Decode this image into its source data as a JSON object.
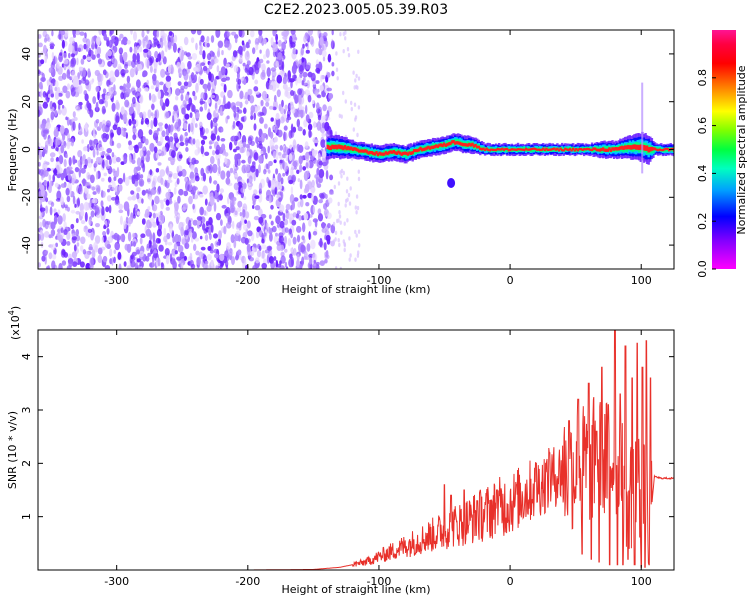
{
  "title": "C2E2.2023.005.05.39.R03",
  "chart_data": [
    {
      "type": "heatmap",
      "xlabel": "Height of straight line (km)",
      "ylabel": "Frequency (Hz)",
      "xlim": [
        -360,
        125
      ],
      "ylim": [
        -50,
        50
      ],
      "xticks": [
        -300,
        -200,
        -100,
        0,
        100
      ],
      "yticks": [
        -40,
        -20,
        0,
        20,
        40
      ],
      "colorbar": {
        "label": "Normalized spectral amplitude",
        "range": [
          0.0,
          1.0
        ],
        "ticks": [
          0.0,
          0.2,
          0.4,
          0.6,
          0.8
        ],
        "colors": [
          "#ff00ff",
          "#8000ff",
          "#0000ff",
          "#00c0ff",
          "#00ff80",
          "#40ff00",
          "#c0ff00",
          "#ffc000",
          "#ff4000",
          "#ff0000",
          "#ff1493"
        ]
      },
      "noise_region_x": [
        -360,
        -135
      ],
      "sparse_noise_x": [
        -135,
        -115
      ],
      "ridge": {
        "x": [
          -140,
          -130,
          -120,
          -110,
          -100,
          -90,
          -80,
          -70,
          -60,
          -50,
          -45,
          -40,
          -35,
          -30,
          -20,
          -10,
          0,
          10,
          20,
          30,
          40,
          50,
          60,
          70,
          80,
          90,
          100,
          105,
          110,
          125
        ],
        "y": [
          1,
          1,
          0,
          -1,
          -2,
          -1,
          -2,
          0,
          1,
          2,
          3,
          3,
          2,
          2,
          0,
          0,
          0,
          0,
          0,
          0,
          0,
          0,
          0,
          0,
          0,
          1,
          1,
          0,
          0,
          0
        ],
        "width_hz": [
          4,
          4,
          3,
          3,
          3,
          3,
          3,
          3,
          3,
          3,
          3,
          3,
          3,
          3,
          2,
          2,
          2,
          2,
          2,
          2,
          2,
          2,
          2,
          3,
          3,
          4,
          5,
          5,
          2,
          2
        ]
      },
      "blob": {
        "x": -45,
        "y": -14
      }
    },
    {
      "type": "line",
      "xlabel": "Height of straight line (km)",
      "ylabel": "SNR (10 * v/v)",
      "scale_label": "(x10",
      "scale_exponent": "4",
      "scale_suffix": ")",
      "xlim": [
        -360,
        125
      ],
      "ylim": [
        0,
        4.5
      ],
      "xticks": [
        -300,
        -200,
        -100,
        0,
        100
      ],
      "yticks": [
        1,
        2,
        3,
        4
      ],
      "color": "#e8302a",
      "x": [
        -360,
        -300,
        -200,
        -150,
        -130,
        -120,
        -110,
        -100,
        -90,
        -80,
        -70,
        -60,
        -50,
        -40,
        -30,
        -20,
        -10,
        0,
        10,
        20,
        30,
        40,
        50,
        60,
        65,
        70,
        75,
        80,
        85,
        90,
        95,
        100,
        105,
        108,
        110,
        115,
        125
      ],
      "y": [
        0.0,
        0.0,
        0.0,
        0.01,
        0.05,
        0.1,
        0.15,
        0.25,
        0.35,
        0.45,
        0.55,
        0.65,
        0.75,
        0.85,
        0.95,
        1.05,
        1.15,
        1.25,
        1.4,
        1.55,
        1.7,
        1.85,
        1.9,
        2.0,
        2.1,
        2.1,
        2.0,
        2.2,
        1.8,
        1.5,
        1.6,
        1.4,
        1.0,
        1.2,
        1.75,
        1.72,
        1.72
      ],
      "spikes": [
        {
          "x": -50,
          "y": 1.6
        },
        {
          "x": -45,
          "y": 1.4
        },
        {
          "x": -35,
          "y": 1.5
        },
        {
          "x": -25,
          "y": 1.3
        },
        {
          "x": -10,
          "y": 1.5
        },
        {
          "x": 5,
          "y": 1.6
        },
        {
          "x": 20,
          "y": 2.0
        },
        {
          "x": 30,
          "y": 2.2
        },
        {
          "x": 45,
          "y": 2.8
        },
        {
          "x": 52,
          "y": 3.2
        },
        {
          "x": 60,
          "y": 3.5
        },
        {
          "x": 66,
          "y": 2.6
        },
        {
          "x": 70,
          "y": 3.8
        },
        {
          "x": 75,
          "y": 3.1
        },
        {
          "x": 80,
          "y": 4.5
        },
        {
          "x": 84,
          "y": 3.3
        },
        {
          "x": 88,
          "y": 4.2
        },
        {
          "x": 93,
          "y": 3.6
        },
        {
          "x": 97,
          "y": 4.25
        },
        {
          "x": 101,
          "y": 3.8
        },
        {
          "x": 104,
          "y": 4.3
        },
        {
          "x": 107,
          "y": 3.6
        }
      ],
      "dips": [
        {
          "x": 55,
          "y": 0.3
        },
        {
          "x": 62,
          "y": 0.2
        },
        {
          "x": 68,
          "y": 0.15
        },
        {
          "x": 76,
          "y": 0.1
        },
        {
          "x": 82,
          "y": 0.1
        },
        {
          "x": 86,
          "y": 0.1
        },
        {
          "x": 90,
          "y": 0.2
        },
        {
          "x": 95,
          "y": 0.1
        },
        {
          "x": 100,
          "y": 0.05
        },
        {
          "x": 103,
          "y": 0.05
        },
        {
          "x": 106,
          "y": 0.1
        }
      ]
    }
  ]
}
